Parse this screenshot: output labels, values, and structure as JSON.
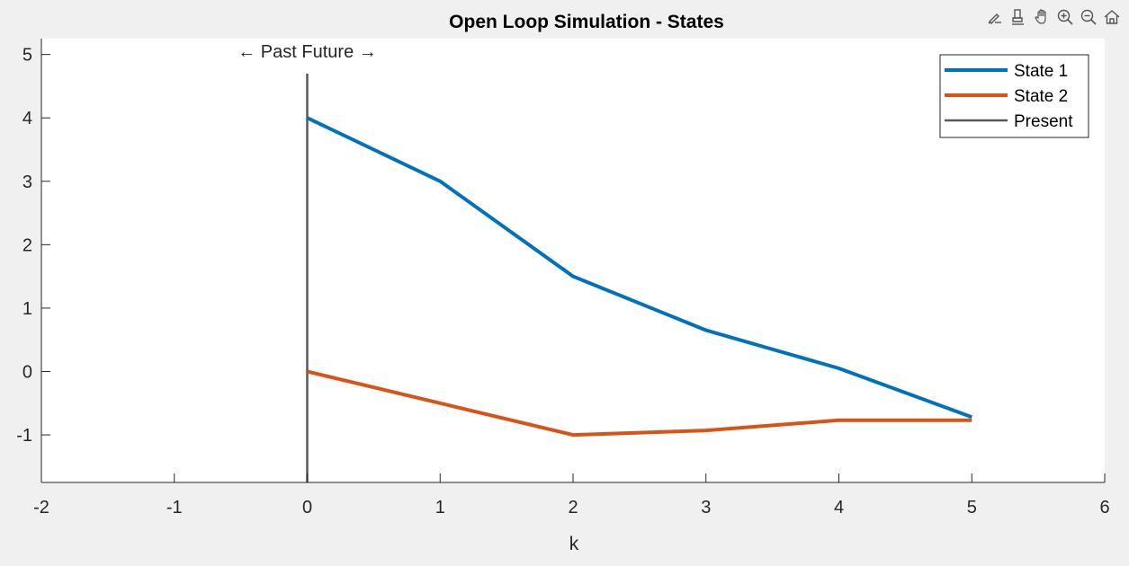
{
  "toolbar": {
    "icons": [
      "brush-icon",
      "data-tip-icon",
      "pan-icon",
      "zoom-in-icon",
      "zoom-out-icon",
      "home-icon"
    ]
  },
  "chart_data": {
    "type": "line",
    "title": "Open Loop Simulation - States",
    "xlabel": "k",
    "ylabel": "",
    "xlim": [
      -2,
      6
    ],
    "ylim": [
      -1.75,
      5.25
    ],
    "xticks": [
      -2,
      -1,
      0,
      1,
      2,
      3,
      4,
      5,
      6
    ],
    "yticks": [
      -1,
      0,
      1,
      2,
      3,
      4,
      5
    ],
    "x": [
      0,
      1,
      2,
      3,
      4,
      5
    ],
    "series": [
      {
        "name": "State 1",
        "color": "#0072bd",
        "values": [
          4,
          3,
          1.5,
          0.65,
          0.05,
          -0.72
        ]
      },
      {
        "name": "State 2",
        "color": "#d95319",
        "values": [
          0,
          -0.5,
          -1.0,
          -0.93,
          -0.77,
          -0.77
        ]
      }
    ],
    "present": {
      "name": "Present",
      "x": 0,
      "y_top": 4.7,
      "color": "#595959"
    },
    "annotation": {
      "text": "← Past Future →",
      "x": 0,
      "y": 5.05
    },
    "legend_position": "top-right",
    "grid": false
  }
}
